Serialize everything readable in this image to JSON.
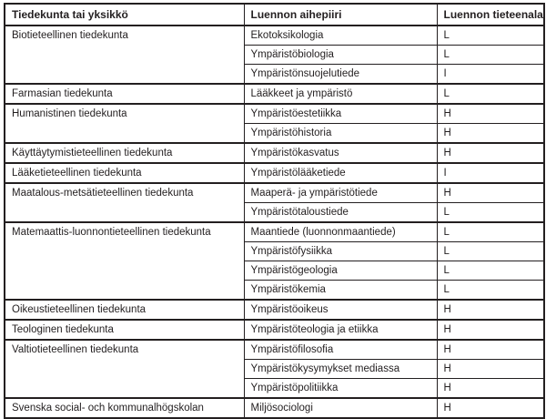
{
  "colors": {
    "border": "#231f20",
    "text": "#231f20",
    "background": "#ffffff"
  },
  "table": {
    "headers": {
      "faculty": "Tiedekunta tai yksikkö",
      "topic": "Luennon aihepiiri",
      "discipline": "Luennon tieteenala"
    },
    "groups": [
      {
        "faculty": "Biotieteellinen tiedekunta",
        "rows": [
          {
            "topic": "Ekotoksikologia",
            "discipline": "L"
          },
          {
            "topic": "Ympäristöbiologia",
            "discipline": "L"
          },
          {
            "topic": "Ympäristönsuojelutiede",
            "discipline": "I"
          }
        ]
      },
      {
        "faculty": "Farmasian tiedekunta",
        "rows": [
          {
            "topic": "Lääkkeet ja ympäristö",
            "discipline": "L"
          }
        ]
      },
      {
        "faculty": "Humanistinen tiedekunta",
        "rows": [
          {
            "topic": "Ympäristöestetiikka",
            "discipline": "H"
          },
          {
            "topic": "Ympäristöhistoria",
            "discipline": "H"
          }
        ]
      },
      {
        "faculty": "Käyttäytymistieteellinen tiedekunta",
        "rows": [
          {
            "topic": "Ympäristökasvatus",
            "discipline": "H"
          }
        ]
      },
      {
        "faculty": "Lääketieteellinen tiedekunta",
        "rows": [
          {
            "topic": "Ympäristölääketiede",
            "discipline": "I"
          }
        ]
      },
      {
        "faculty": "Maatalous-metsätieteellinen tiedekunta",
        "rows": [
          {
            "topic": "Maaperä- ja ympäristötiede",
            "discipline": "H"
          },
          {
            "topic": "Ympäristötaloustiede",
            "discipline": "L"
          }
        ]
      },
      {
        "faculty": "Matemaattis-luonnontieteellinen tiedekunta",
        "rows": [
          {
            "topic": "Maantiede (luonnonmaantiede)",
            "discipline": "L"
          },
          {
            "topic": "Ympäristöfysiikka",
            "discipline": "L"
          },
          {
            "topic": "Ympäristögeologia",
            "discipline": "L"
          },
          {
            "topic": "Ympäristökemia",
            "discipline": "L"
          }
        ]
      },
      {
        "faculty": "Oikeustieteellinen tiedekunta",
        "rows": [
          {
            "topic": "Ympäristöoikeus",
            "discipline": "H"
          }
        ]
      },
      {
        "faculty": "Teologinen tiedekunta",
        "rows": [
          {
            "topic": "Ympäristöteologia ja etiikka",
            "discipline": "H"
          }
        ]
      },
      {
        "faculty": "Valtiotieteellinen tiedekunta",
        "rows": [
          {
            "topic": "Ympäristöfilosofia",
            "discipline": "H"
          },
          {
            "topic": "Ympäristökysymykset mediassa",
            "discipline": "H"
          },
          {
            "topic": "Ympäristöpolitiikka",
            "discipline": "H"
          }
        ]
      },
      {
        "faculty": "Svenska social- och kommunalhögskolan",
        "rows": [
          {
            "topic": "Miljösociologi",
            "discipline": "H"
          }
        ]
      }
    ]
  }
}
